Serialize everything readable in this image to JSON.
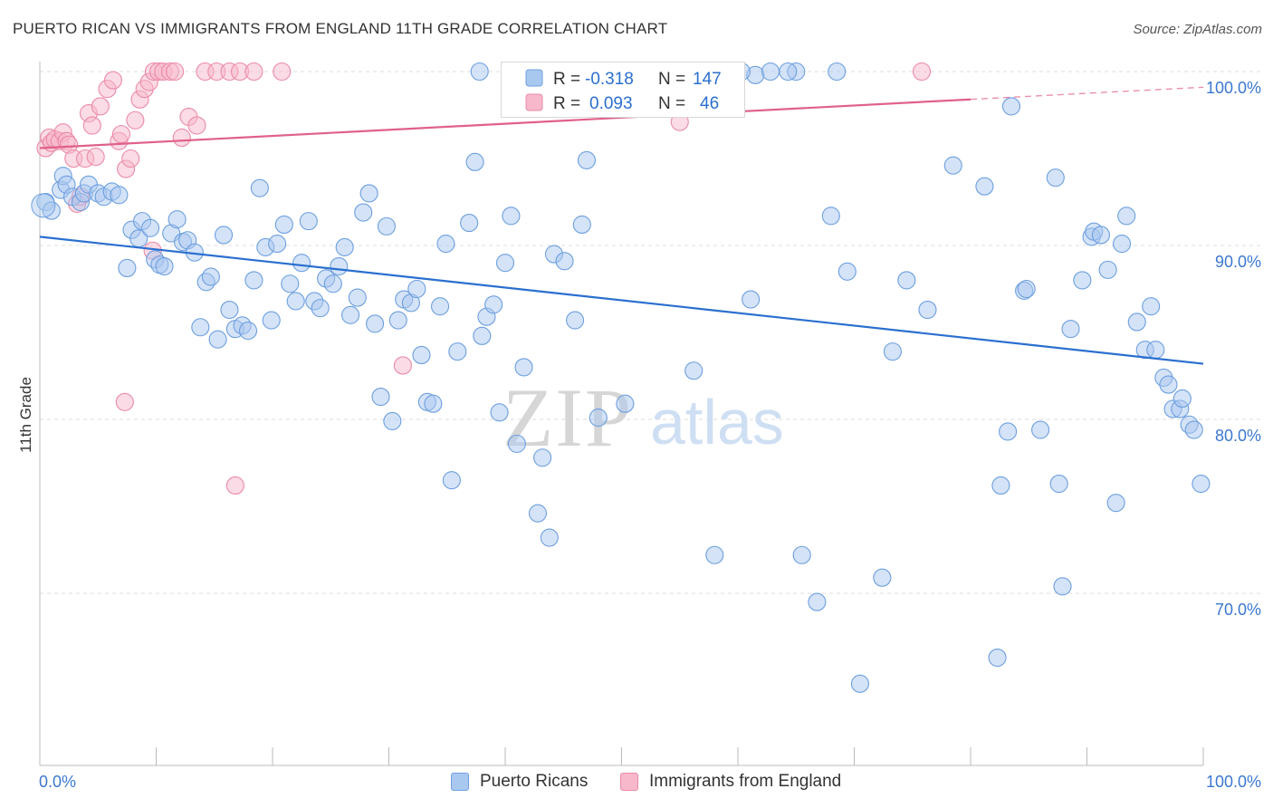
{
  "title": "PUERTO RICAN VS IMMIGRANTS FROM ENGLAND 11TH GRADE CORRELATION CHART",
  "source": "Source: ZipAtlas.com",
  "watermark": {
    "zip": "ZIP",
    "atlas": "atlas"
  },
  "colors": {
    "blue_fill": "#a9c8f0",
    "blue_stroke": "#6d9fdf",
    "blue_line": "#2a6fcf",
    "pink_fill": "#f7b8cb",
    "pink_stroke": "#eb8aa8",
    "pink_line": "#e0618a",
    "tick_label": "#3b78d0",
    "grid": "#dedede"
  },
  "legend": {
    "r_label": "R =",
    "n_label": "N =",
    "rows": [
      {
        "r": "-0.318",
        "n": "147"
      },
      {
        "r": "0.093",
        "n": "46"
      }
    ]
  },
  "chart_data": {
    "type": "scatter",
    "title": "PUERTO RICAN VS IMMIGRANTS FROM ENGLAND 11TH GRADE CORRELATION CHART",
    "xlabel": "",
    "ylabel": "11th Grade",
    "xlim": [
      0,
      100
    ],
    "ylim": [
      60,
      102
    ],
    "x_tick_labels": [
      "0.0%",
      "100.0%"
    ],
    "y_ticks": [
      70,
      80,
      90,
      100
    ],
    "y_tick_labels": [
      "70.0%",
      "80.0%",
      "90.0%",
      "100.0%"
    ],
    "grid": true,
    "legend_position": "bottom",
    "series": [
      {
        "name": "Puerto Ricans",
        "trend": {
          "x": [
            0,
            100
          ],
          "y": [
            90.5,
            83.2
          ]
        },
        "points": [
          [
            0.5,
            92.5
          ],
          [
            1.0,
            92.0
          ],
          [
            1.8,
            93.2
          ],
          [
            2.0,
            94.0
          ],
          [
            2.3,
            93.5
          ],
          [
            2.8,
            92.8
          ],
          [
            3.5,
            92.5
          ],
          [
            3.8,
            93.0
          ],
          [
            4.2,
            93.5
          ],
          [
            5.0,
            93.0
          ],
          [
            5.5,
            92.8
          ],
          [
            6.2,
            93.1
          ],
          [
            6.8,
            92.9
          ],
          [
            7.5,
            88.7
          ],
          [
            7.9,
            90.9
          ],
          [
            8.5,
            90.4
          ],
          [
            8.8,
            91.4
          ],
          [
            9.5,
            91.0
          ],
          [
            9.9,
            89.2
          ],
          [
            10.3,
            88.9
          ],
          [
            10.7,
            88.8
          ],
          [
            11.3,
            90.7
          ],
          [
            11.8,
            91.5
          ],
          [
            12.3,
            90.2
          ],
          [
            12.7,
            90.3
          ],
          [
            13.3,
            89.6
          ],
          [
            13.8,
            85.3
          ],
          [
            14.3,
            87.9
          ],
          [
            14.7,
            88.2
          ],
          [
            15.3,
            84.6
          ],
          [
            15.8,
            90.6
          ],
          [
            16.3,
            86.3
          ],
          [
            16.8,
            85.2
          ],
          [
            17.4,
            85.4
          ],
          [
            17.9,
            85.1
          ],
          [
            18.4,
            88.0
          ],
          [
            18.9,
            93.3
          ],
          [
            19.4,
            89.9
          ],
          [
            19.9,
            85.7
          ],
          [
            20.4,
            90.1
          ],
          [
            21.0,
            91.2
          ],
          [
            21.5,
            87.8
          ],
          [
            22.0,
            86.8
          ],
          [
            22.5,
            89.0
          ],
          [
            23.1,
            91.4
          ],
          [
            23.6,
            86.8
          ],
          [
            24.1,
            86.4
          ],
          [
            24.6,
            88.1
          ],
          [
            25.2,
            87.8
          ],
          [
            25.7,
            88.8
          ],
          [
            26.2,
            89.9
          ],
          [
            26.7,
            86.0
          ],
          [
            27.3,
            87.0
          ],
          [
            27.8,
            91.9
          ],
          [
            28.3,
            93.0
          ],
          [
            28.8,
            85.5
          ],
          [
            29.3,
            81.3
          ],
          [
            29.8,
            91.1
          ],
          [
            30.3,
            79.9
          ],
          [
            30.8,
            85.7
          ],
          [
            31.3,
            86.9
          ],
          [
            31.9,
            86.7
          ],
          [
            32.4,
            87.5
          ],
          [
            32.8,
            83.7
          ],
          [
            33.3,
            81.0
          ],
          [
            33.8,
            80.9
          ],
          [
            34.4,
            86.5
          ],
          [
            34.9,
            90.1
          ],
          [
            35.4,
            76.5
          ],
          [
            35.9,
            83.9
          ],
          [
            36.9,
            91.3
          ],
          [
            37.4,
            94.8
          ],
          [
            38.0,
            84.8
          ],
          [
            38.4,
            85.9
          ],
          [
            39.0,
            86.6
          ],
          [
            39.5,
            80.4
          ],
          [
            40.0,
            89.0
          ],
          [
            40.5,
            91.7
          ],
          [
            41.0,
            78.6
          ],
          [
            41.6,
            83.0
          ],
          [
            42.8,
            74.6
          ],
          [
            43.2,
            77.8
          ],
          [
            43.8,
            73.2
          ],
          [
            44.2,
            89.5
          ],
          [
            45.1,
            89.1
          ],
          [
            46.0,
            85.7
          ],
          [
            46.6,
            91.2
          ],
          [
            47.0,
            94.9
          ],
          [
            48.0,
            80.1
          ],
          [
            50.3,
            80.9
          ],
          [
            52.5,
            99.8
          ],
          [
            56.2,
            82.8
          ],
          [
            58.0,
            72.2
          ],
          [
            61.5,
            99.8
          ],
          [
            61.1,
            86.9
          ],
          [
            62.8,
            100.0
          ],
          [
            65.0,
            100.0
          ],
          [
            65.5,
            72.2
          ],
          [
            66.8,
            69.5
          ],
          [
            68.5,
            100.0
          ],
          [
            68.0,
            91.7
          ],
          [
            69.4,
            88.5
          ],
          [
            70.5,
            64.8
          ],
          [
            72.4,
            70.9
          ],
          [
            73.3,
            83.9
          ],
          [
            74.5,
            88.0
          ],
          [
            76.3,
            86.3
          ],
          [
            78.5,
            94.6
          ],
          [
            81.2,
            93.4
          ],
          [
            82.3,
            66.3
          ],
          [
            82.6,
            76.2
          ],
          [
            83.2,
            79.3
          ],
          [
            83.5,
            98.0
          ],
          [
            84.6,
            87.4
          ],
          [
            84.8,
            87.5
          ],
          [
            86.0,
            79.4
          ],
          [
            87.3,
            93.9
          ],
          [
            87.6,
            76.3
          ],
          [
            87.9,
            70.4
          ],
          [
            88.6,
            85.2
          ],
          [
            89.6,
            88.0
          ],
          [
            90.4,
            90.5
          ],
          [
            90.6,
            90.8
          ],
          [
            91.2,
            90.6
          ],
          [
            91.8,
            88.6
          ],
          [
            92.5,
            75.2
          ],
          [
            93.0,
            90.1
          ],
          [
            93.4,
            91.7
          ],
          [
            94.3,
            85.6
          ],
          [
            95.0,
            84.0
          ],
          [
            95.5,
            86.5
          ],
          [
            95.9,
            84.0
          ],
          [
            96.6,
            82.4
          ],
          [
            97.0,
            82.0
          ],
          [
            97.4,
            80.6
          ],
          [
            98.0,
            80.6
          ],
          [
            98.2,
            81.2
          ],
          [
            98.8,
            79.7
          ],
          [
            99.2,
            79.4
          ],
          [
            99.8,
            76.3
          ],
          [
            37.8,
            100.0
          ],
          [
            59.2,
            100.0
          ],
          [
            64.3,
            100.0
          ],
          [
            60.3,
            100.0
          ],
          [
            49.5,
            100.0
          ],
          [
            53.5,
            100.0
          ],
          [
            41.0,
            100.0
          ]
        ]
      },
      {
        "name": "Immigrants from England",
        "trend": {
          "x": [
            0,
            80
          ],
          "y": [
            95.6,
            98.4
          ]
        },
        "trend_dashed": {
          "x": [
            80,
            100
          ],
          "y": [
            98.4,
            99.1
          ]
        },
        "points": [
          [
            0.5,
            95.6
          ],
          [
            0.8,
            96.2
          ],
          [
            1.0,
            95.9
          ],
          [
            1.3,
            96.1
          ],
          [
            1.7,
            96.0
          ],
          [
            2.0,
            96.5
          ],
          [
            2.3,
            96.0
          ],
          [
            2.5,
            95.8
          ],
          [
            2.9,
            95.0
          ],
          [
            3.2,
            92.4
          ],
          [
            3.5,
            92.8
          ],
          [
            3.9,
            95.0
          ],
          [
            4.2,
            97.6
          ],
          [
            4.5,
            96.9
          ],
          [
            4.8,
            95.1
          ],
          [
            5.2,
            98.0
          ],
          [
            5.8,
            99.0
          ],
          [
            6.3,
            99.5
          ],
          [
            6.8,
            96.0
          ],
          [
            7.0,
            96.4
          ],
          [
            7.4,
            94.4
          ],
          [
            7.8,
            95.0
          ],
          [
            8.2,
            97.2
          ],
          [
            8.6,
            98.4
          ],
          [
            9.0,
            99.0
          ],
          [
            9.4,
            99.4
          ],
          [
            9.8,
            100.0
          ],
          [
            10.2,
            100.0
          ],
          [
            10.6,
            100.0
          ],
          [
            11.2,
            100.0
          ],
          [
            11.6,
            100.0
          ],
          [
            12.2,
            96.2
          ],
          [
            12.8,
            97.4
          ],
          [
            13.5,
            96.9
          ],
          [
            14.2,
            100.0
          ],
          [
            15.2,
            100.0
          ],
          [
            16.3,
            100.0
          ],
          [
            17.2,
            100.0
          ],
          [
            18.4,
            100.0
          ],
          [
            20.8,
            100.0
          ],
          [
            7.3,
            81.0
          ],
          [
            9.7,
            89.7
          ],
          [
            16.8,
            76.2
          ],
          [
            31.2,
            83.1
          ],
          [
            55.0,
            97.1
          ],
          [
            75.8,
            100.0
          ]
        ]
      }
    ]
  }
}
